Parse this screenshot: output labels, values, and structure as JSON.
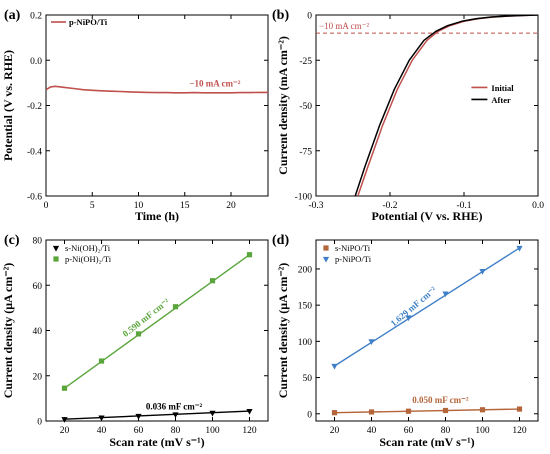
{
  "chart_data": [
    {
      "panel": "(a)",
      "type": "line",
      "xlabel": "Time (h)",
      "ylabel": "Potential (V vs. RHE)",
      "xlim": [
        0,
        24
      ],
      "ylim": [
        -0.6,
        0.2
      ],
      "xticks": [
        0,
        5,
        10,
        15,
        20
      ],
      "yticks": [
        0.2,
        0.0,
        -0.2,
        -0.4,
        -0.6
      ],
      "xtick_labels": [
        "0",
        "5",
        "10",
        "15",
        "20"
      ],
      "ytick_labels": [
        "0.2",
        "0.0",
        "-0.2",
        "-0.4",
        "-0.6"
      ],
      "legend": [
        "p-NiPO/Ti"
      ],
      "annotation": "−10 mA cm⁻²",
      "color": "#c0504d",
      "series": [
        {
          "name": "p-NiPO/Ti",
          "x": [
            0,
            0.5,
            1,
            2,
            3,
            4,
            5,
            6,
            7,
            8,
            9,
            10,
            11,
            12,
            13,
            14,
            15,
            16,
            17,
            18,
            19,
            20,
            21,
            22,
            23,
            24
          ],
          "y": [
            -0.13,
            -0.118,
            -0.115,
            -0.12,
            -0.125,
            -0.13,
            -0.133,
            -0.135,
            -0.137,
            -0.138,
            -0.14,
            -0.141,
            -0.142,
            -0.143,
            -0.143,
            -0.144,
            -0.144,
            -0.143,
            -0.144,
            -0.144,
            -0.144,
            -0.144,
            -0.143,
            -0.143,
            -0.142,
            -0.142
          ]
        }
      ]
    },
    {
      "panel": "(b)",
      "type": "line",
      "xlabel": "Potential (V vs. RHE)",
      "ylabel": "Current density (mA cm⁻²)",
      "xlim": [
        -0.3,
        0.0
      ],
      "ylim": [
        -100,
        0
      ],
      "xticks": [
        -0.3,
        -0.2,
        -0.1,
        0.0
      ],
      "yticks": [
        0,
        -25,
        -50,
        -75,
        -100
      ],
      "xtick_labels": [
        "-0.3",
        "-0.2",
        "-0.1",
        "0.0"
      ],
      "ytick_labels": [
        "0",
        "-25",
        "-50",
        "-75",
        "-100"
      ],
      "legend": [
        "Initial",
        "After"
      ],
      "annotation": "−10 mA cm⁻²",
      "reference_line_y": -10,
      "series": [
        {
          "name": "Initial",
          "color": "#c0504d",
          "x": [
            -0.2435,
            -0.23,
            -0.21,
            -0.19,
            -0.17,
            -0.15,
            -0.135,
            -0.12,
            -0.1,
            -0.08,
            -0.06,
            -0.04,
            -0.02,
            0.0
          ],
          "y": [
            -100,
            -84,
            -61,
            -41,
            -25,
            -14,
            -9,
            -6,
            -3.5,
            -2,
            -1.1,
            -0.6,
            -0.25,
            0
          ]
        },
        {
          "name": "After",
          "color": "#000000",
          "x": [
            -0.247,
            -0.234,
            -0.214,
            -0.194,
            -0.174,
            -0.154,
            -0.138,
            -0.123,
            -0.103,
            -0.083,
            -0.063,
            -0.043,
            -0.022,
            0.0
          ],
          "y": [
            -100,
            -84,
            -61,
            -41,
            -25,
            -14,
            -9,
            -6,
            -3.5,
            -2,
            -1.1,
            -0.6,
            -0.25,
            0
          ]
        }
      ]
    },
    {
      "panel": "(c)",
      "type": "scatter",
      "xlabel": "Scan rate (mV s⁻¹)",
      "ylabel": "Current density (μA cm⁻²)",
      "xlim": [
        10,
        130
      ],
      "ylim": [
        0,
        80
      ],
      "xticks": [
        20,
        40,
        60,
        80,
        100,
        120
      ],
      "yticks": [
        0,
        20,
        40,
        60,
        80
      ],
      "xtick_labels": [
        "20",
        "40",
        "60",
        "80",
        "100",
        "120"
      ],
      "ytick_labels": [
        "0",
        "20",
        "40",
        "60",
        "80"
      ],
      "legend": [
        "s-Ni(OH)₂/Ti",
        "p-Ni(OH)₂/Ti"
      ],
      "series": [
        {
          "name": "s-Ni(OH)₂/Ti",
          "color": "#000000",
          "marker": "triangle-down",
          "slope_label": "0.036 mF cm⁻²",
          "x": [
            20,
            40,
            60,
            80,
            100,
            120
          ],
          "y": [
            0.8,
            1.5,
            2.2,
            2.9,
            3.6,
            4.4
          ]
        },
        {
          "name": "p-Ni(OH)₂/Ti",
          "color": "#5aa63c",
          "marker": "square",
          "slope_label": "0.590 mF cm⁻²",
          "x": [
            20,
            40,
            60,
            80,
            100,
            120
          ],
          "y": [
            14.5,
            26.5,
            38.5,
            50.5,
            62.0,
            73.5
          ]
        }
      ]
    },
    {
      "panel": "(d)",
      "type": "scatter",
      "xlabel": "Scan rate (mV s⁻¹)",
      "ylabel": "Current density (μA cm⁻²)",
      "xlim": [
        10,
        130
      ],
      "ylim": [
        -10,
        240
      ],
      "xticks": [
        20,
        40,
        60,
        80,
        100,
        120
      ],
      "yticks": [
        0,
        50,
        100,
        150,
        200
      ],
      "xtick_labels": [
        "20",
        "40",
        "60",
        "80",
        "100",
        "120"
      ],
      "ytick_labels": [
        "0",
        "50",
        "100",
        "150",
        "200"
      ],
      "legend": [
        "s-NiPO/Ti",
        "p-NiPO/Ti"
      ],
      "series": [
        {
          "name": "s-NiPO/Ti",
          "color": "#b5653a",
          "marker": "square",
          "slope_label": "0.050 mF cm⁻²",
          "x": [
            20,
            40,
            60,
            80,
            100,
            120
          ],
          "y": [
            1.5,
            2.5,
            3.5,
            4.5,
            5.5,
            6.5
          ]
        },
        {
          "name": "p-NiPO/Ti",
          "color": "#3f7fc7",
          "marker": "triangle-down",
          "slope_label": "1.629 mF cm⁻²",
          "x": [
            20,
            40,
            60,
            80,
            100,
            120
          ],
          "y": [
            66,
            100,
            133,
            166,
            197,
            229
          ]
        }
      ]
    }
  ]
}
